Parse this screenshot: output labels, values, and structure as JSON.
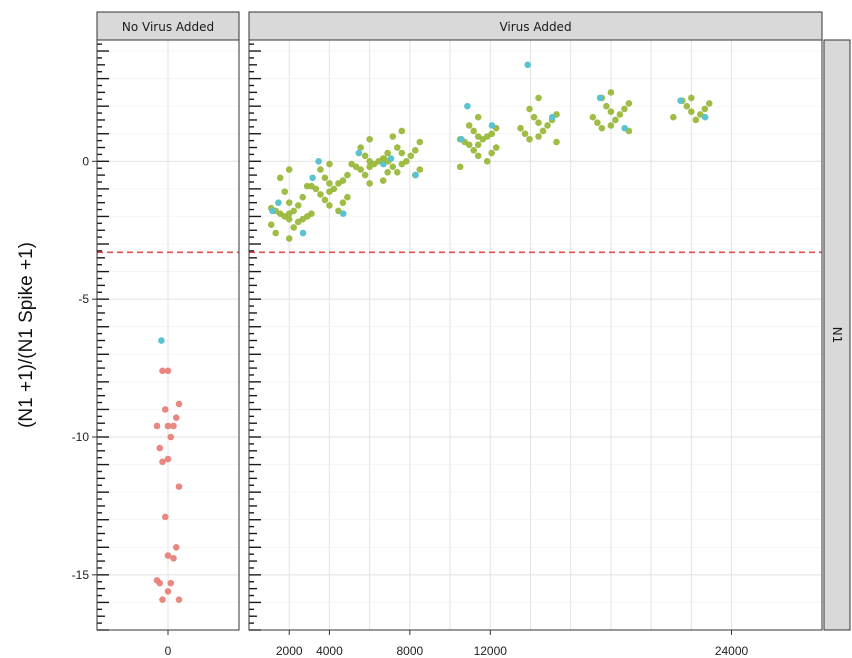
{
  "chart_data": {
    "type": "scatter",
    "title": "",
    "ylabel": "(N1 +1)/(N1 Spike +1)",
    "row_strip": "N1",
    "ylim": [
      -17,
      4.4
    ],
    "yticks": [
      -15,
      -10,
      -5,
      0
    ],
    "ytick_labels": [
      "-15",
      "-10",
      "-5",
      "0"
    ],
    "threshold_line": {
      "y": -3.3,
      "color": "#e0524f",
      "style": "dashed"
    },
    "colors": {
      "no_virus": "#e8817a",
      "virus": "#9ab83a",
      "highlight": "#5bc2d2"
    },
    "panels": [
      {
        "strip": "No Virus Added",
        "xlim": [
          -1,
          1
        ],
        "xticks": [
          0
        ],
        "xtick_labels": [
          "0"
        ],
        "groups": [
          {
            "x": 0,
            "color_key": "no_virus",
            "y": [
              -7.6,
              -7.6,
              -8.8,
              -9.0,
              -9.3,
              -9.6,
              -9.6,
              -9.6,
              -10.0,
              -10.4,
              -10.8,
              -10.9,
              -11.8,
              -12.9,
              -14.0,
              -14.3,
              -14.4,
              -15.2,
              -15.3,
              -15.3,
              -15.6,
              -15.9,
              -15.9
            ],
            "highlight_y": [
              -6.5
            ]
          }
        ]
      },
      {
        "strip": "Virus Added",
        "xlim": [
          0,
          28500
        ],
        "xticks": [
          2000,
          4000,
          8000,
          12000,
          24000
        ],
        "xtick_labels": [
          "2000",
          "4000",
          "8000",
          "12000",
          "24000"
        ],
        "gridlines_x": [
          2000,
          4000,
          6000,
          8000,
          10000,
          12000,
          14000,
          16000,
          18000,
          20000,
          22000,
          24000
        ],
        "groups": [
          {
            "x": 2000,
            "color_key": "virus",
            "y": [
              -0.3,
              -0.6,
              -0.9,
              -1.1,
              -1.3,
              -1.5,
              -1.6,
              -1.7,
              -1.8,
              -1.8,
              -1.9,
              -1.9,
              -2.0,
              -2.0,
              -2.1,
              -2.1,
              -2.2,
              -2.3,
              -2.4,
              -2.6,
              -2.8
            ],
            "highlight_y": [
              -1.5,
              -2.6,
              -1.8
            ]
          },
          {
            "x": 4000,
            "color_key": "virus",
            "y": [
              -0.1,
              -0.3,
              -0.5,
              -0.6,
              -0.7,
              -0.8,
              -0.8,
              -0.9,
              -1.0,
              -1.0,
              -1.1,
              -1.2,
              -1.3,
              -1.4,
              -1.5,
              -1.6,
              -1.8,
              -1.9
            ],
            "highlight_y": [
              0.0,
              -1.9,
              -0.6
            ]
          },
          {
            "x": 6000,
            "color_key": "virus",
            "y": [
              0.8,
              0.5,
              0.3,
              0.2,
              0.1,
              0.0,
              0.0,
              -0.1,
              -0.1,
              -0.2,
              -0.2,
              -0.3,
              -0.4,
              -0.5,
              -0.7,
              -0.8
            ],
            "highlight_y": [
              0.3,
              -0.1
            ]
          },
          {
            "x": 7600,
            "color_key": "virus",
            "y": [
              1.1,
              0.9,
              0.7,
              0.5,
              0.4,
              0.3,
              0.2,
              0.1,
              0.0,
              0.0,
              -0.1,
              -0.2,
              -0.3,
              -0.4,
              -0.5
            ],
            "highlight_y": [
              0.1,
              -0.5
            ]
          },
          {
            "x": 11400,
            "color_key": "virus",
            "y": [
              1.6,
              1.3,
              1.2,
              1.1,
              1.0,
              0.9,
              0.9,
              0.8,
              0.8,
              0.7,
              0.6,
              0.6,
              0.5,
              0.4,
              0.3,
              0.2,
              0.0,
              -0.2
            ],
            "highlight_y": [
              2.0,
              1.3,
              0.8
            ]
          },
          {
            "x": 14400,
            "color_key": "virus",
            "y": [
              2.3,
              1.9,
              1.7,
              1.6,
              1.5,
              1.4,
              1.3,
              1.2,
              1.1,
              1.0,
              0.9,
              0.8,
              0.7
            ],
            "highlight_y": [
              3.5,
              1.6
            ]
          },
          {
            "x": 18000,
            "color_key": "virus",
            "y": [
              2.5,
              2.3,
              2.1,
              2.0,
              1.9,
              1.8,
              1.7,
              1.6,
              1.5,
              1.4,
              1.3,
              1.2,
              1.1
            ],
            "highlight_y": [
              2.3,
              1.2
            ]
          },
          {
            "x": 22000,
            "color_key": "virus",
            "y": [
              2.3,
              2.2,
              2.1,
              2.0,
              1.9,
              1.8,
              1.7,
              1.6,
              1.5
            ],
            "highlight_y": [
              2.2,
              1.6
            ]
          }
        ]
      }
    ]
  }
}
